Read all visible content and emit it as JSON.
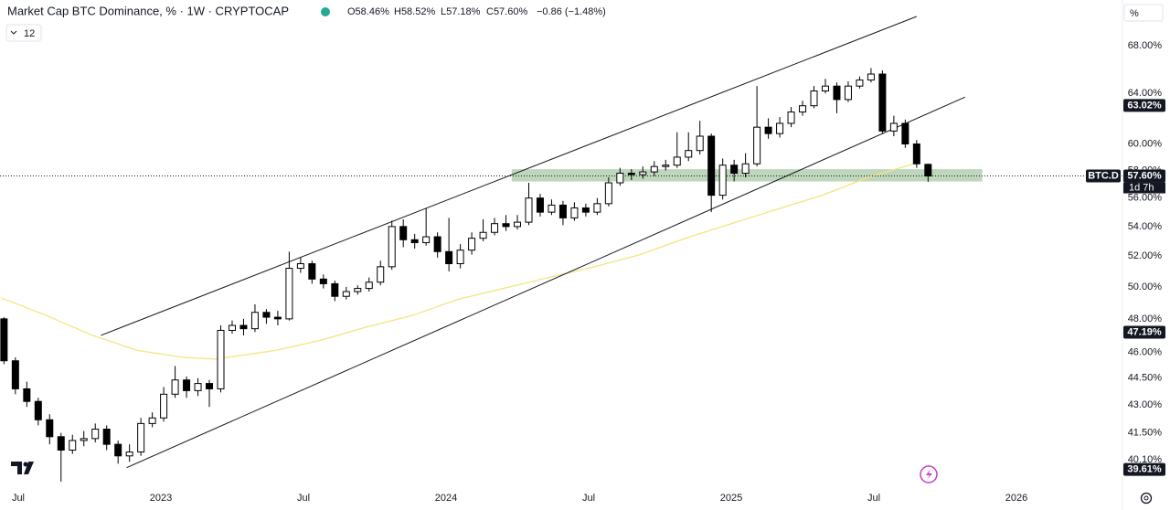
{
  "chart_data": {
    "type": "candlestick",
    "header": {
      "title": "Market Cap BTC Dominance, % · 1W · CRYPTOCAP",
      "ohlc": [
        "O58.46%",
        "H58.52%",
        "L57.18%",
        "C57.60%"
      ],
      "change": "−0.86 (−1.48%)",
      "interval_badge": "12",
      "scale_button": "%"
    },
    "log_scale": true,
    "up_color": "#ffffff",
    "down_color": "#000000",
    "wick_color": "#000000",
    "xlim": [
      2022.436,
      2026.362
    ],
    "ylim": [
      38.86,
      72.1
    ],
    "xticks": [
      {
        "value": 2022.5,
        "label": "Jul"
      },
      {
        "value": 2023,
        "label": "2023"
      },
      {
        "value": 2023.5,
        "label": "Jul"
      },
      {
        "value": 2024,
        "label": "2024"
      },
      {
        "value": 2024.5,
        "label": "Jul"
      },
      {
        "value": 2025,
        "label": "2025"
      },
      {
        "value": 2025.5,
        "label": "Jul"
      },
      {
        "value": 2026,
        "label": "2026"
      }
    ],
    "yticks": [
      {
        "value": 68,
        "label": "68.00%"
      },
      {
        "value": 64,
        "label": "64.00%"
      },
      {
        "value": 60,
        "label": "60.00%"
      },
      {
        "value": 58,
        "label": "58.00%"
      },
      {
        "value": 56,
        "label": "56.00%"
      },
      {
        "value": 54,
        "label": "54.00%"
      },
      {
        "value": 52,
        "label": "52.00%"
      },
      {
        "value": 50,
        "label": "50.00%"
      },
      {
        "value": 48,
        "label": "48.00%"
      },
      {
        "value": 46,
        "label": "46.00%"
      },
      {
        "value": 44.5,
        "label": "44.50%"
      },
      {
        "value": 43,
        "label": "43.00%"
      },
      {
        "value": 41.5,
        "label": "41.50%"
      },
      {
        "value": 40.1,
        "label": "40.10%"
      }
    ],
    "x": [
      2022.45,
      2022.49,
      2022.53,
      2022.57,
      2022.61,
      2022.65,
      2022.69,
      2022.73,
      2022.77,
      2022.81,
      2022.85,
      2022.89,
      2022.93,
      2022.97,
      2023.01,
      2023.05,
      2023.09,
      2023.13,
      2023.17,
      2023.21,
      2023.25,
      2023.29,
      2023.33,
      2023.37,
      2023.41,
      2023.45,
      2023.49,
      2023.53,
      2023.57,
      2023.61,
      2023.65,
      2023.69,
      2023.73,
      2023.77,
      2023.81,
      2023.85,
      2023.89,
      2023.93,
      2023.97,
      2024.01,
      2024.05,
      2024.09,
      2024.13,
      2024.17,
      2024.21,
      2024.25,
      2024.29,
      2024.33,
      2024.37,
      2024.41,
      2024.45,
      2024.49,
      2024.53,
      2024.57,
      2024.61,
      2024.65,
      2024.69,
      2024.73,
      2024.77,
      2024.81,
      2024.85,
      2024.89,
      2024.93,
      2024.97,
      2025.01,
      2025.05,
      2025.09,
      2025.13,
      2025.17,
      2025.21,
      2025.25,
      2025.29,
      2025.33,
      2025.37,
      2025.41,
      2025.45,
      2025.49,
      2025.53,
      2025.57,
      2025.61,
      2025.65,
      2025.69
    ],
    "open": [
      48.0,
      45.5,
      43.9,
      43.2,
      42.2,
      41.3,
      40.6,
      41.1,
      41.2,
      41.7,
      40.9,
      40.3,
      40.5,
      42.0,
      42.3,
      43.6,
      44.4,
      43.8,
      44.2,
      43.9,
      47.3,
      47.6,
      47.4,
      48.4,
      48.1,
      48.0,
      51.2,
      51.5,
      50.5,
      50.2,
      49.4,
      49.7,
      49.9,
      50.3,
      51.3,
      54.0,
      53.1,
      52.9,
      53.3,
      52.3,
      51.5,
      52.4,
      53.2,
      53.6,
      54.2,
      54.0,
      54.3,
      56.0,
      55.0,
      55.5,
      54.6,
      55.3,
      55.0,
      55.6,
      57.1,
      57.8,
      57.7,
      57.9,
      58.3,
      58.4,
      59.0,
      59.5,
      60.6,
      56.2,
      58.4,
      57.8,
      58.5,
      61.3,
      60.8,
      61.6,
      62.5,
      63.0,
      64.2,
      64.6,
      63.5,
      64.6,
      65.1,
      65.6,
      61.0,
      61.6,
      60.0,
      58.46
    ],
    "high": [
      48.1,
      45.7,
      44.3,
      43.4,
      42.5,
      41.5,
      41.4,
      41.6,
      42.0,
      41.9,
      41.1,
      40.9,
      42.3,
      42.6,
      44.0,
      45.2,
      44.6,
      44.5,
      44.4,
      47.6,
      47.9,
      48.0,
      48.9,
      48.6,
      48.5,
      52.3,
      51.9,
      51.7,
      50.8,
      50.4,
      50.0,
      50.1,
      50.6,
      51.7,
      54.4,
      54.5,
      53.5,
      55.3,
      53.6,
      54.6,
      52.8,
      53.6,
      54.5,
      54.6,
      54.8,
      54.8,
      57.1,
      56.3,
      55.9,
      55.8,
      55.7,
      55.6,
      56.0,
      57.5,
      58.2,
      58.1,
      58.3,
      58.7,
      58.8,
      60.9,
      60.9,
      61.8,
      60.8,
      58.9,
      58.8,
      59.3,
      64.6,
      62.0,
      62.1,
      62.9,
      63.4,
      64.6,
      65.2,
      64.9,
      65.0,
      65.4,
      66.1,
      65.9,
      62.2,
      61.9,
      60.3,
      58.52
    ],
    "low": [
      45.3,
      43.6,
      42.9,
      41.9,
      40.9,
      39.0,
      40.4,
      40.8,
      41.0,
      40.6,
      39.9,
      40.0,
      40.3,
      41.8,
      42.1,
      43.4,
      43.4,
      43.5,
      42.9,
      43.7,
      47.1,
      47.0,
      47.2,
      47.7,
      47.6,
      47.9,
      50.9,
      50.2,
      49.9,
      49.1,
      49.2,
      49.5,
      49.7,
      50.1,
      51.1,
      52.6,
      52.5,
      52.7,
      51.9,
      51.0,
      51.2,
      52.1,
      53.0,
      53.4,
      53.7,
      53.8,
      54.1,
      54.7,
      54.8,
      54.1,
      54.4,
      54.7,
      54.8,
      55.4,
      56.9,
      57.3,
      57.4,
      57.6,
      58.0,
      58.2,
      58.7,
      59.2,
      55.0,
      55.9,
      57.2,
      57.5,
      58.3,
      60.4,
      60.5,
      61.3,
      62.2,
      62.8,
      64.0,
      62.4,
      63.3,
      64.4,
      64.9,
      60.8,
      60.6,
      59.7,
      58.2,
      57.18
    ],
    "close": [
      45.5,
      43.9,
      43.2,
      42.2,
      41.3,
      40.6,
      41.1,
      41.2,
      41.7,
      40.9,
      40.3,
      40.5,
      42.0,
      42.3,
      43.6,
      44.4,
      43.8,
      44.2,
      43.9,
      47.3,
      47.6,
      47.4,
      48.4,
      48.1,
      48.0,
      51.2,
      51.5,
      50.5,
      50.2,
      49.4,
      49.7,
      49.9,
      50.3,
      51.3,
      54.0,
      53.1,
      52.9,
      53.3,
      52.3,
      51.5,
      52.4,
      53.2,
      53.6,
      54.2,
      54.0,
      54.3,
      56.0,
      55.0,
      55.5,
      54.6,
      55.3,
      55.0,
      55.6,
      57.1,
      57.8,
      57.7,
      57.9,
      58.3,
      58.4,
      59.0,
      59.5,
      60.6,
      56.2,
      58.4,
      57.8,
      58.5,
      61.3,
      60.8,
      61.6,
      62.5,
      63.0,
      64.2,
      64.6,
      63.5,
      64.6,
      65.1,
      65.6,
      61.0,
      61.6,
      60.0,
      58.5,
      57.6
    ],
    "moving_average": {
      "color": "#f5e47c",
      "x": [
        2022.44,
        2022.6,
        2022.76,
        2022.92,
        2023.08,
        2023.19,
        2023.4,
        2023.56,
        2023.72,
        2023.88,
        2024.04,
        2024.2,
        2024.36,
        2024.52,
        2024.68,
        2024.84,
        2025.0,
        2025.16,
        2025.32,
        2025.48,
        2025.64
      ],
      "values": [
        49.3,
        48.2,
        47.0,
        46.1,
        45.7,
        45.6,
        46.1,
        46.7,
        47.5,
        48.2,
        49.2,
        49.9,
        50.6,
        51.3,
        52.1,
        53.2,
        54.2,
        55.2,
        56.2,
        57.5,
        58.5
      ]
    },
    "channel_lines": [
      {
        "x": [
          2022.79,
          2025.65
        ],
        "y": [
          47.0,
          70.6
        ]
      },
      {
        "x": [
          2022.88,
          2025.82
        ],
        "y": [
          39.7,
          63.7
        ]
      }
    ],
    "zone": {
      "color": "#a8c8a4",
      "x": [
        2024.23,
        2025.88
      ],
      "y": [
        57.2,
        58.1
      ]
    },
    "price_label": {
      "symbol": "BTC.D",
      "value": {
        "value": 57.6,
        "label": "57.60%"
      },
      "countdown": "1d 7h"
    },
    "axis_markers": [
      {
        "value": 63.02,
        "label": "63.02%"
      },
      {
        "value": 47.19,
        "label": "47.19%"
      },
      {
        "value": 39.61,
        "label": "39.61%"
      }
    ]
  }
}
